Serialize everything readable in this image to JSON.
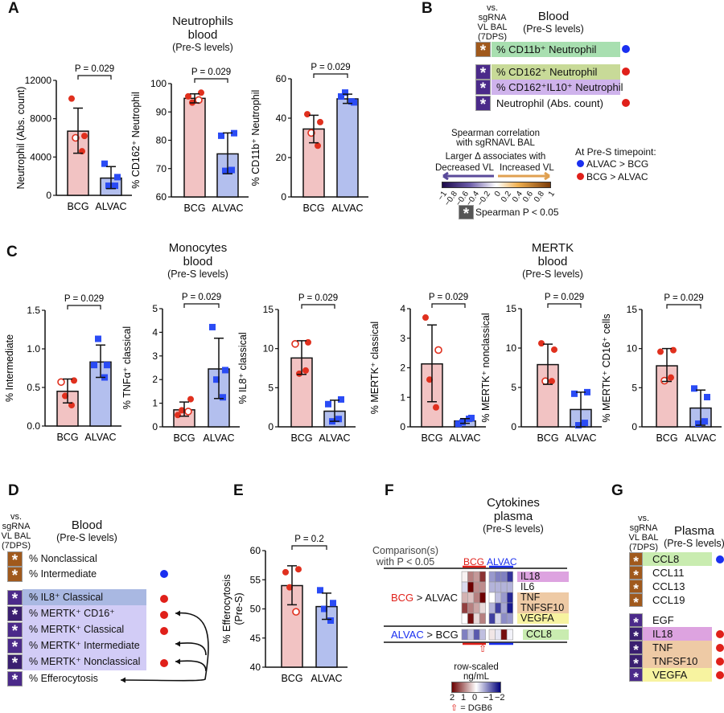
{
  "colors": {
    "bcg_bar": "#f2c3c3",
    "alvac_bar": "#b3bfee",
    "bcg_point": "#e0301e",
    "alvac_point": "#2a4bf5",
    "positive_corr": "#a0591c",
    "negative_corr": "#4b2a8a"
  },
  "panel_letters": {
    "A": "A",
    "B": "B",
    "C": "C",
    "D": "D",
    "E": "E",
    "F": "F",
    "G": "G"
  },
  "titles": {
    "neutrophils": [
      "Neutrophils",
      "blood",
      "(Pre-S levels)"
    ],
    "monocytes": [
      "Monocytes",
      "blood",
      "(Pre-S levels)"
    ],
    "mertk": [
      "MERTK",
      "blood",
      "(Pre-S levels)"
    ],
    "cytokines": [
      "Cytokines",
      "plasma",
      "(Pre-S levels)"
    ]
  },
  "chart_data": [
    {
      "id": "A1",
      "type": "bar",
      "ylabel": "Neutrophil (Abs. count)",
      "categories": [
        "BCG",
        "ALVAC"
      ],
      "ylim": [
        0,
        12000
      ],
      "ticks": [
        "0",
        "4000",
        "8000",
        "12000"
      ],
      "pvalue": "P = 0.029",
      "bars": [
        {
          "mean": 6700,
          "err": [
            4400,
            9100
          ],
          "points": [
            10100,
            6200,
            6000,
            4600
          ],
          "open": [
            false,
            false,
            true,
            false
          ]
        },
        {
          "mean": 1800,
          "err": [
            700,
            3000
          ],
          "points": [
            3300,
            1900,
            1000,
            1000
          ]
        }
      ]
    },
    {
      "id": "A2",
      "type": "bar",
      "ylabel": "% CD162⁺ Neutrophil",
      "categories": [
        "BCG",
        "ALVAC"
      ],
      "ylim": [
        60,
        100
      ],
      "ticks": [
        "60",
        "70",
        "80",
        "90",
        "100"
      ],
      "pvalue": "P = 0.029",
      "bars": [
        {
          "mean": 94.8,
          "err": [
            93.2,
            96.4
          ],
          "points": [
            95.5,
            96.8,
            93.3,
            94.2
          ],
          "open": [
            false,
            false,
            false,
            true
          ]
        },
        {
          "mean": 75.2,
          "err": [
            68.2,
            82.6
          ],
          "points": [
            81.6,
            82.5,
            69.2,
            69.5
          ]
        }
      ]
    },
    {
      "id": "A3",
      "type": "bar",
      "ylabel": "% CD11b⁺ Neutrophil",
      "categories": [
        "BCG",
        "ALVAC"
      ],
      "ylim": [
        0,
        60
      ],
      "ticks": [
        "0",
        "20",
        "40",
        "60"
      ],
      "pvalue": "P = 0.029",
      "bars": [
        {
          "mean": 34.5,
          "err": [
            27.5,
            41.5
          ],
          "points": [
            42,
            38,
            32.5,
            26
          ],
          "open": [
            false,
            false,
            true,
            false
          ]
        },
        {
          "mean": 49.8,
          "err": [
            47.5,
            52.2
          ],
          "points": [
            51,
            48,
            53,
            48.5
          ]
        }
      ]
    },
    {
      "id": "C1",
      "type": "bar",
      "ylabel": "% Intermediate",
      "categories": [
        "BCG",
        "ALVAC"
      ],
      "ylim": [
        0,
        1.5
      ],
      "ticks": [
        "0.0",
        "0.5",
        "1.0",
        "1.5"
      ],
      "pvalue": "P = 0.029",
      "bars": [
        {
          "mean": 0.45,
          "err": [
            0.3,
            0.61
          ],
          "points": [
            0.57,
            0.59,
            0.39,
            0.27
          ],
          "open": [
            true,
            false,
            false,
            false
          ]
        },
        {
          "mean": 0.83,
          "err": [
            0.63,
            1.05
          ],
          "points": [
            0.79,
            0.79,
            1.13,
            0.63
          ]
        }
      ]
    },
    {
      "id": "C2",
      "type": "bar",
      "ylabel": "% TNFα⁺ classical",
      "categories": [
        "BCG",
        "ALVAC"
      ],
      "ylim": [
        0,
        5
      ],
      "ticks": [
        "0",
        "1",
        "2",
        "3",
        "4",
        "5"
      ],
      "pvalue": "P = 0.029",
      "bars": [
        {
          "mean": 0.72,
          "err": [
            0.45,
            1.05
          ],
          "points": [
            0.5,
            1.17,
            0.7,
            0.65
          ],
          "open": [
            false,
            false,
            false,
            true
          ]
        },
        {
          "mean": 2.45,
          "err": [
            1.2,
            3.75
          ],
          "points": [
            4.22,
            2.4,
            2.0,
            1.25
          ]
        }
      ]
    },
    {
      "id": "C3",
      "type": "bar",
      "ylabel": "% IL8⁺ classical",
      "categories": [
        "BCG",
        "ALVAC"
      ],
      "ylim": [
        0,
        15
      ],
      "ticks": [
        "0",
        "5",
        "10",
        "15"
      ],
      "pvalue": "P = 0.029",
      "bars": [
        {
          "mean": 8.8,
          "err": [
            6.7,
            11
          ],
          "points": [
            10.6,
            10.8,
            6.8,
            7.2
          ],
          "open": [
            true,
            false,
            false,
            false
          ]
        },
        {
          "mean": 2.0,
          "err": [
            0.7,
            3.4
          ],
          "points": [
            2.9,
            3.5,
            0.7,
            1.0
          ]
        }
      ]
    },
    {
      "id": "C4",
      "type": "bar",
      "ylabel": "% MERTK⁺ classical",
      "categories": [
        "BCG",
        "ALVAC"
      ],
      "ylim": [
        0,
        4
      ],
      "ticks": [
        "0",
        "1",
        "2",
        "3",
        "4"
      ],
      "pvalue": "P = 0.029",
      "bars": [
        {
          "mean": 2.13,
          "err": [
            0.85,
            3.45
          ],
          "points": [
            3.7,
            2.6,
            1.6,
            0.66
          ],
          "open": [
            false,
            true,
            false,
            false
          ]
        },
        {
          "mean": 0.2,
          "err": [
            0.12,
            0.28
          ],
          "points": [
            0.1,
            0.3,
            0.15,
            0.27
          ]
        }
      ]
    },
    {
      "id": "C5",
      "type": "bar",
      "ylabel": "% MERTK⁺ nonclassical",
      "categories": [
        "BCG",
        "ALVAC"
      ],
      "ylim": [
        0,
        15
      ],
      "ticks": [
        "0",
        "5",
        "10",
        "15"
      ],
      "pvalue": "P = 0.029",
      "bars": [
        {
          "mean": 7.9,
          "err": [
            5.4,
            10.5
          ],
          "points": [
            10.6,
            9.8,
            5.8,
            5.8
          ],
          "open": [
            false,
            false,
            true,
            false
          ]
        },
        {
          "mean": 2.2,
          "err": [
            0,
            4.4
          ],
          "points": [
            4.2,
            4.4,
            0.2,
            0.5
          ]
        }
      ]
    },
    {
      "id": "C6",
      "type": "bar",
      "ylabel": "% MERTK⁺ CD16⁺ cells",
      "categories": [
        "BCG",
        "ALVAC"
      ],
      "ylim": [
        0,
        15
      ],
      "ticks": [
        "0",
        "5",
        "10",
        "15"
      ],
      "pvalue": "P = 0.029",
      "bars": [
        {
          "mean": 7.8,
          "err": [
            5.8,
            10
          ],
          "points": [
            9.6,
            9.8,
            5.9,
            6.3
          ],
          "open": [
            false,
            false,
            true,
            false
          ]
        },
        {
          "mean": 2.4,
          "err": [
            0.2,
            4.7
          ],
          "points": [
            4.9,
            3.8,
            0.4,
            0.7
          ]
        }
      ]
    },
    {
      "id": "E",
      "type": "bar",
      "ylabel": "% Efferocytosis",
      "ylabel2": "(Pre-S)",
      "categories": [
        "BCG",
        "ALVAC"
      ],
      "ylim": [
        40,
        60
      ],
      "ticks": [
        "40",
        "45",
        "50",
        "55",
        "60"
      ],
      "pvalue": "P = 0.2",
      "bars": [
        {
          "mean": 54,
          "err": [
            50.7,
            57.4
          ],
          "points": [
            56.3,
            56.8,
            53.7,
            49.5
          ],
          "open": [
            false,
            false,
            false,
            true
          ]
        },
        {
          "mean": 50.4,
          "err": [
            48.2,
            52.7
          ],
          "points": [
            53.2,
            51,
            50,
            48
          ]
        }
      ]
    },
    {
      "id": "F",
      "type": "heatmap",
      "title": "Cytokines plasma (Pre-S levels)",
      "column_groups": [
        "BCG",
        "ALVAC"
      ],
      "rows": [
        "IL18",
        "IL6",
        "TNF",
        "TNFSF10",
        "VEGFA",
        "CCL8"
      ],
      "values": [
        [
          0.1,
          1,
          0.8,
          1.6,
          -0.8,
          -1,
          -1,
          -1.6
        ],
        [
          -0.3,
          2,
          0.9,
          0.9,
          -0.6,
          -0.6,
          -0.6,
          -0.6
        ],
        [
          0.6,
          0.5,
          1,
          2,
          0,
          -0.5,
          -0.8,
          -1.7
        ],
        [
          1.5,
          1,
          0.7,
          0.3,
          -0.6,
          -1.5,
          -0.7,
          -1.8
        ],
        [
          0,
          1.9,
          0.3,
          1,
          -1.5,
          -0.3,
          -0.9,
          -0.8
        ],
        [
          -1,
          -0.5,
          -1.3,
          -0.5,
          0.2,
          -0.2,
          1.9,
          -0.1
        ]
      ],
      "zlim": [
        -2,
        2
      ]
    }
  ],
  "panel_b": {
    "vs": [
      "vs.",
      "sgRNA",
      "VL BAL",
      "(7DPS)"
    ],
    "title": "Blood",
    "subtitle": "(Pre-S levels)",
    "star": "*",
    "rows": [
      {
        "label": "% CD11b⁺  Neutrophil",
        "corr": "positive",
        "bg": "#a8dfb0",
        "dot": "blue"
      },
      {
        "label": "% CD162⁺ Neutrophil",
        "corr": "negative",
        "bg": "#c8da98",
        "dot": "red"
      },
      {
        "label": "% CD162⁺IL10⁺ Neutrophil",
        "corr": "negative",
        "bg": "#cfb3ec",
        "dot": ""
      },
      {
        "label": "Neutrophil (Abs. count)",
        "corr": "negative",
        "bg": "",
        "dot": "red"
      }
    ],
    "legend": {
      "title": [
        "Spearman correlation",
        "with sgRNAVL BAL"
      ],
      "larger": "Larger Δ associates with",
      "decreased": "Decreased VL",
      "increased": "Increased VL",
      "ticks": [
        "−1",
        "−0.8",
        "−0.6",
        "−0.4",
        "−0.2",
        "0",
        "0.2",
        "0.4",
        "0.6",
        "0.8",
        "1"
      ],
      "sig": "Spearman P < 0.05",
      "timepoint": "At Pre-S timepoint:",
      "alvac_gt": "ALVAC > BCG",
      "bcg_gt": "BCG > ALVAC"
    }
  },
  "panel_d": {
    "vs": [
      "vs.",
      "sgRNA",
      "VL BAL",
      "(7DPS)"
    ],
    "title": "Blood",
    "subtitle": "(Pre-S levels)",
    "star": "*",
    "rows": [
      {
        "label": "% Nonclassical",
        "corr": "positive",
        "dot": ""
      },
      {
        "label": "% Intermediate",
        "corr": "positive",
        "dot": "blue"
      },
      {
        "label": "% IL8⁺ Classical",
        "corr": "negative",
        "dot": "red"
      },
      {
        "label": "% MERTK⁺ CD16⁺",
        "corr": "negative-strong",
        "dot": "red"
      },
      {
        "label": "% MERTK⁺ Classical",
        "corr": "negative",
        "dot": "red"
      },
      {
        "label": "% MERTK⁺ Intermediate",
        "corr": "negative",
        "dot": ""
      },
      {
        "label": "% MERTK⁺ Nonclassical",
        "corr": "negative-strong",
        "dot": "red"
      },
      {
        "label": "% Efferocytosis",
        "corr": "negative",
        "dot": ""
      }
    ]
  },
  "panel_f": {
    "comparison": [
      "Comparison(s)",
      "with P < 0.05"
    ],
    "bcg": "BCG",
    "alvac": "ALVAC",
    "gt": " > ",
    "bcg_gt_alvac_rows": [
      "IL18",
      "IL6",
      "TNF",
      "TNFSF10",
      "VEGFA"
    ],
    "alvac_gt_bcg_rows": [
      "CCL8"
    ],
    "row_bg": [
      "#dda3e0",
      "",
      "#eecaa5",
      "#eecaa5",
      "#f7f3a0",
      "#c9ecb0"
    ],
    "scale_title": [
      "row-scaled",
      "ng/mL"
    ],
    "scale_ticks": [
      "2",
      "1",
      "0",
      "−1",
      "−2"
    ],
    "arrow": "⇧",
    "dgb6": " = DGB6"
  },
  "panel_g": {
    "vs": [
      "vs.",
      "sgRNA",
      "VL BAL",
      "(7DPS)"
    ],
    "title": "Plasma",
    "subtitle": "(Pre-S levels)",
    "star": "*",
    "rows": [
      {
        "label": "CCL8",
        "corr": "positive",
        "bg": "#c9ecb0",
        "dot": "blue"
      },
      {
        "label": "CCL11",
        "corr": "positive",
        "bg": "",
        "dot": ""
      },
      {
        "label": "CCL13",
        "corr": "positive",
        "bg": "",
        "dot": ""
      },
      {
        "label": "CCL19",
        "corr": "positive",
        "bg": "",
        "dot": ""
      },
      {
        "label": "EGF",
        "corr": "negative",
        "bg": "",
        "dot": ""
      },
      {
        "label": "IL18",
        "corr": "negative-strong",
        "bg": "#dda3e0",
        "dot": "red"
      },
      {
        "label": "TNF",
        "corr": "negative-strong",
        "bg": "#eecaa5",
        "dot": "red"
      },
      {
        "label": "TNFSF10",
        "corr": "negative-strong",
        "bg": "#eecaa5",
        "dot": "red"
      },
      {
        "label": "VEGFA",
        "corr": "negative",
        "bg": "#f7f3a0",
        "dot": "red"
      }
    ]
  }
}
